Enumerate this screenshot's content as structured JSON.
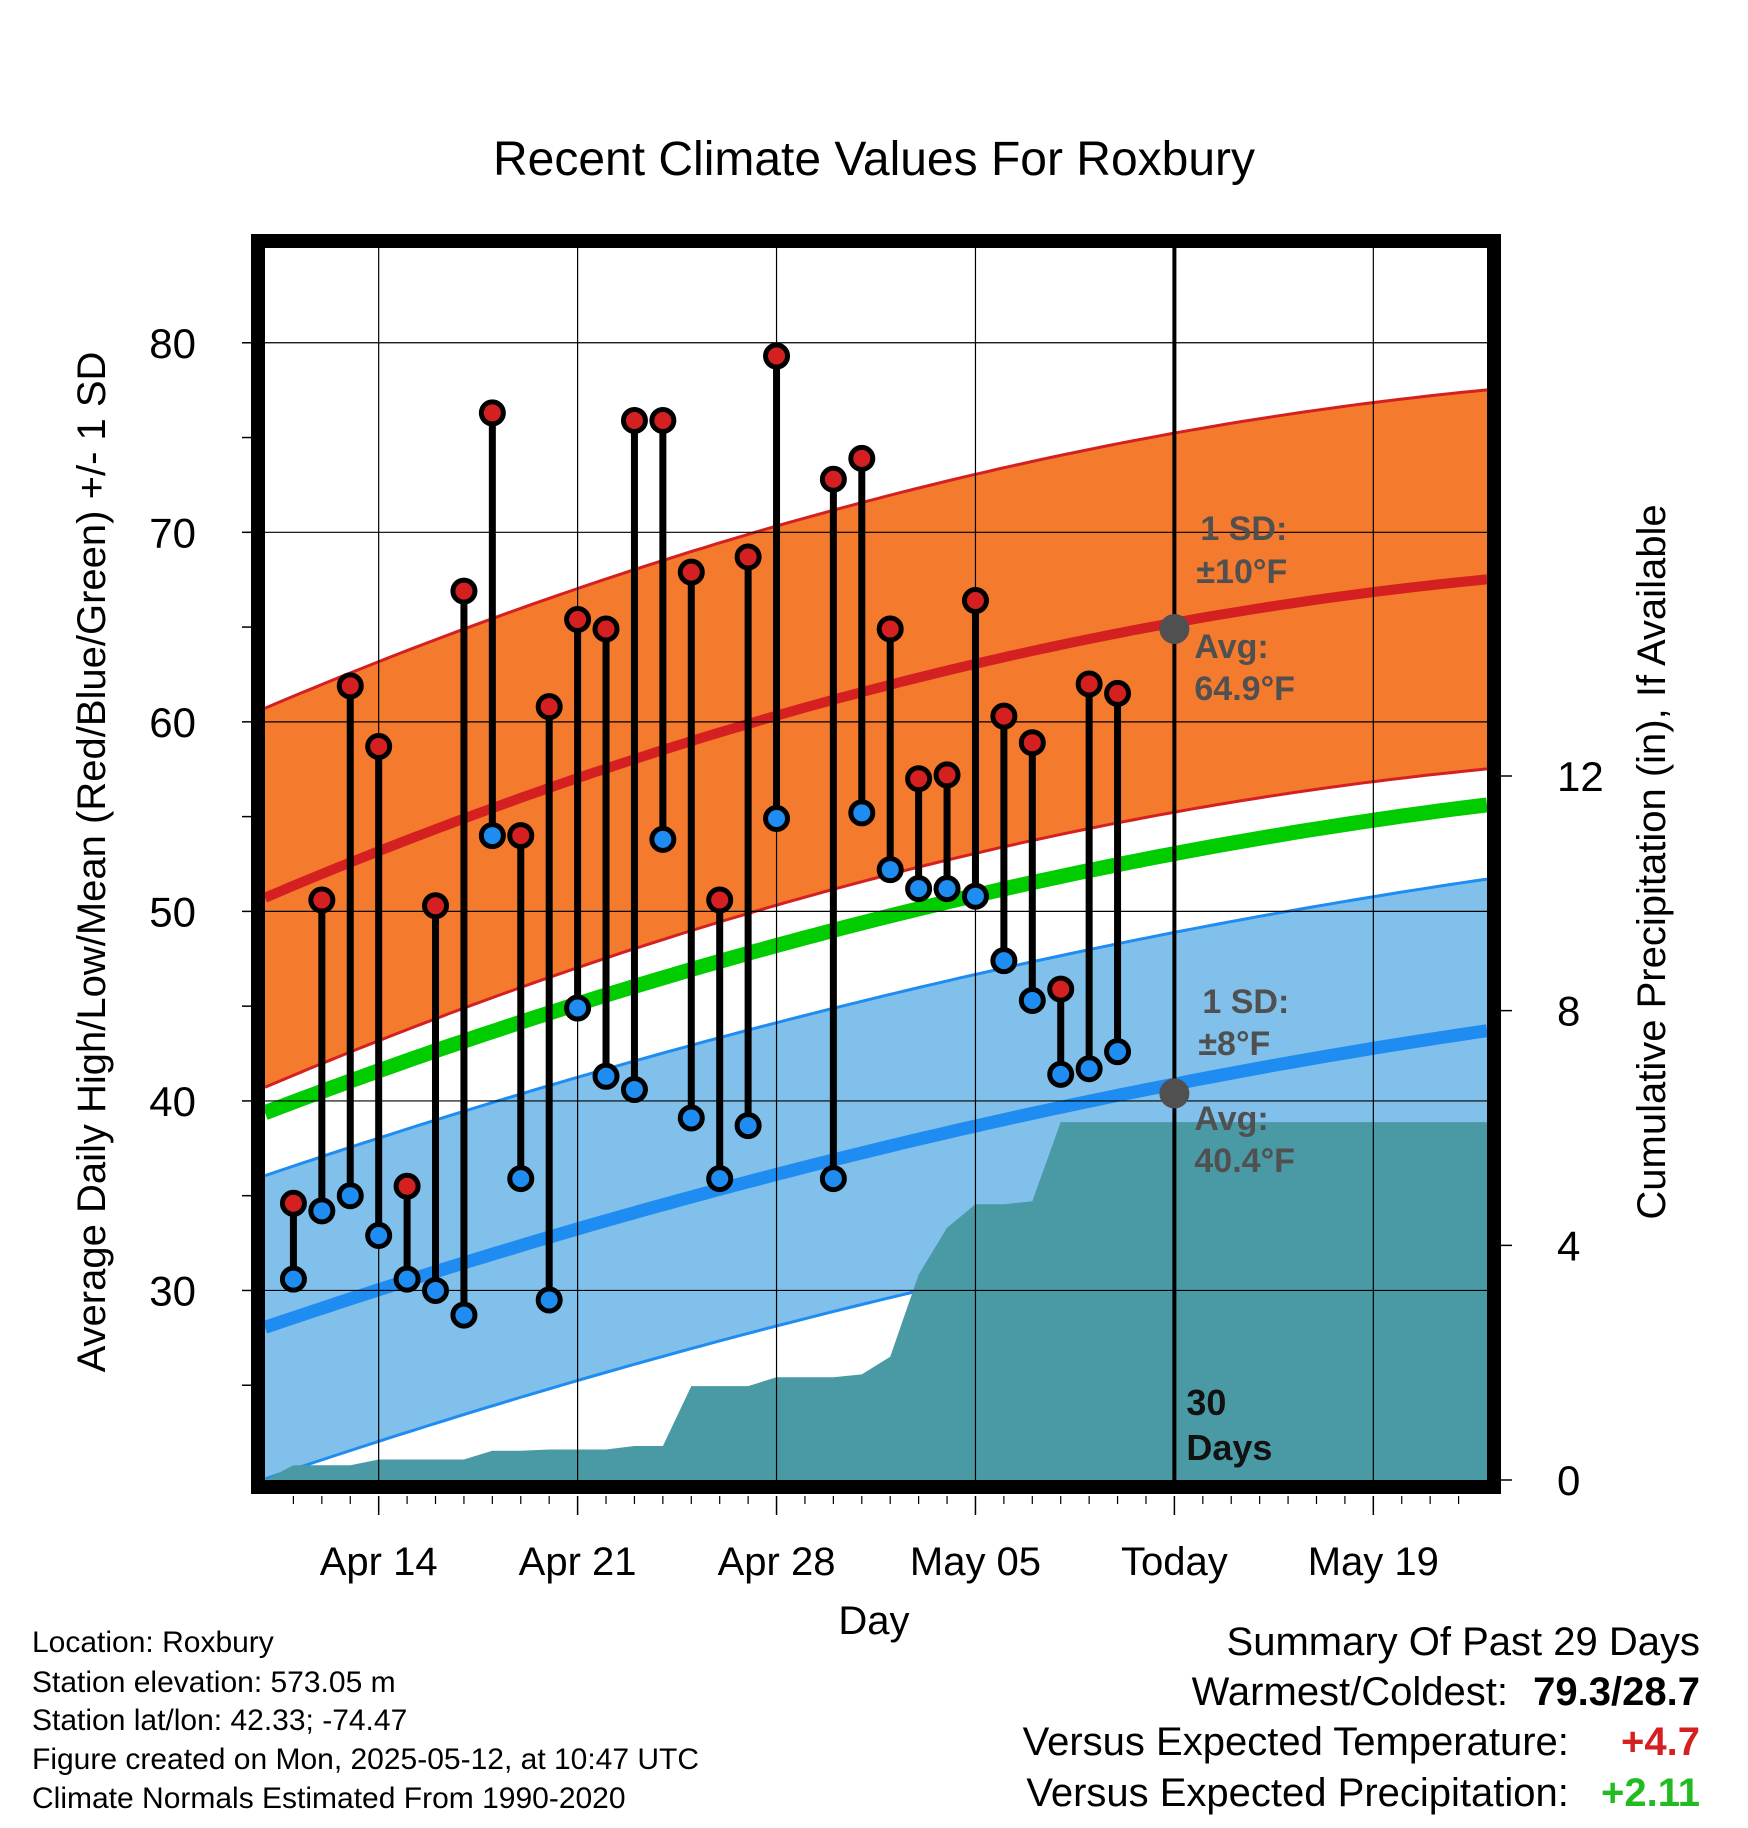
{
  "chart_data": {
    "type": "line",
    "title": "Recent Climate Values For Roxbury",
    "xlabel": "Day",
    "ylabel": "Average Daily High/Low/Mean (Red/Blue/Green) +/- 1 SD",
    "y2label": "Cumulative Precipitation (in), If Available",
    "ylim": [
      20,
      85
    ],
    "y2lim": [
      0,
      21
    ],
    "y_ticks": [
      "30",
      "40",
      "50",
      "60",
      "70",
      "80"
    ],
    "y2_ticks": [
      "0",
      "4",
      "8",
      "12"
    ],
    "x_range": [
      "2025-04-10",
      "2025-05-23"
    ],
    "x_ticks": [
      {
        "date": "2025-04-14",
        "label": "Apr 14"
      },
      {
        "date": "2025-04-21",
        "label": "Apr 21"
      },
      {
        "date": "2025-04-28",
        "label": "Apr 28"
      },
      {
        "date": "2025-05-05",
        "label": "May 05"
      },
      {
        "date": "2025-05-12",
        "label": "Today"
      },
      {
        "date": "2025-05-19",
        "label": "May 19"
      }
    ],
    "grid": true,
    "today": "2025-05-12",
    "days_label": [
      "30",
      "Days"
    ],
    "normals": {
      "dates": [
        "2025-04-11",
        "2025-04-18",
        "2025-04-25",
        "2025-05-02",
        "2025-05-09",
        "2025-05-16",
        "2025-05-22"
      ],
      "high_avg": [
        51.3,
        55.5,
        59.0,
        62.0,
        64.4,
        66.0,
        67.5
      ],
      "low_avg": [
        28.5,
        32.0,
        35.0,
        37.5,
        40.0,
        42.0,
        43.5
      ],
      "mean_avg": [
        39.9,
        43.7,
        47.0,
        49.7,
        52.2,
        54.0,
        55.5
      ],
      "high_sd": 10,
      "low_sd": 8
    },
    "high_annotation": {
      "sd_label": "1 SD:",
      "sd_value": "±10°F",
      "avg_label": "Avg:",
      "avg_value": "64.9°F",
      "value": 64.9
    },
    "low_annotation": {
      "sd_label": "1 SD:",
      "sd_value": "±8°F",
      "avg_label": "Avg:",
      "avg_value": "40.4°F",
      "value": 40.4
    },
    "series": [
      {
        "name": "High",
        "color": "#d42020",
        "values": [
          34.6,
          50.6,
          61.9,
          58.7,
          35.5,
          50.3,
          66.9,
          76.3,
          54.0,
          60.8,
          65.4,
          64.9,
          75.9,
          75.9,
          67.9,
          50.6,
          68.7,
          79.3,
          72.8,
          73.9,
          64.9,
          57.0,
          57.2,
          66.4,
          60.3,
          58.9,
          45.9,
          62.0,
          61.5
        ]
      },
      {
        "name": "Low",
        "color": "#1e8cf0",
        "values": [
          30.6,
          34.2,
          35.0,
          32.9,
          30.6,
          30.0,
          28.7,
          54.0,
          35.9,
          29.5,
          44.9,
          41.3,
          40.6,
          53.8,
          39.1,
          35.9,
          38.7,
          54.9,
          35.9,
          55.2,
          52.2,
          51.2,
          51.2,
          50.8,
          47.4,
          45.3,
          41.4,
          41.7,
          42.6
        ]
      }
    ],
    "observation_dates": [
      "2025-04-11",
      "2025-04-12",
      "2025-04-13",
      "2025-04-14",
      "2025-04-15",
      "2025-04-16",
      "2025-04-17",
      "2025-04-18",
      "2025-04-19",
      "2025-04-20",
      "2025-04-21",
      "2025-04-22",
      "2025-04-23",
      "2025-04-24",
      "2025-04-25",
      "2025-04-26",
      "2025-04-27",
      "2025-04-28",
      "2025-04-30",
      "2025-05-01",
      "2025-05-02",
      "2025-05-03",
      "2025-05-04",
      "2025-05-05",
      "2025-05-06",
      "2025-05-07",
      "2025-05-08",
      "2025-05-09",
      "2025-05-10"
    ],
    "precipitation": {
      "dates": [
        "2025-04-10",
        "2025-04-11",
        "2025-04-13",
        "2025-04-14",
        "2025-04-15",
        "2025-04-16",
        "2025-04-17",
        "2025-04-18",
        "2025-04-19",
        "2025-04-20",
        "2025-04-21",
        "2025-04-22",
        "2025-04-23",
        "2025-04-24",
        "2025-04-25",
        "2025-04-26",
        "2025-04-27",
        "2025-04-28",
        "2025-04-29",
        "2025-04-30",
        "2025-05-01",
        "2025-05-02",
        "2025-05-03",
        "2025-05-04",
        "2025-05-05",
        "2025-05-06",
        "2025-05-07",
        "2025-05-08",
        "2025-05-09",
        "2025-05-10",
        "2025-05-11",
        "2025-05-12",
        "2025-05-23"
      ],
      "values": [
        0.0,
        0.25,
        0.25,
        0.35,
        0.35,
        0.35,
        0.35,
        0.5,
        0.5,
        0.52,
        0.52,
        0.52,
        0.58,
        0.58,
        1.6,
        1.6,
        1.6,
        1.75,
        1.75,
        1.75,
        1.8,
        2.1,
        3.5,
        4.3,
        4.7,
        4.7,
        4.75,
        6.1,
        6.1,
        6.1,
        6.1,
        6.1,
        6.1
      ]
    }
  },
  "info": {
    "location": "Location: Roxbury",
    "elevation": "Station elevation: 573.05 m",
    "latlon": "Station lat/lon: 42.33; -74.47",
    "created": "Figure created on Mon, 2025-05-12, at 10:47 UTC",
    "normals": "Climate Normals Estimated From 1990-2020"
  },
  "summary": {
    "title": "Summary Of Past 29 Days",
    "warmest_label": "Warmest/Coldest:",
    "warmest_value": "79.3",
    "coldest_value": "28.7",
    "temp_label": "Versus Expected Temperature:",
    "temp_value": "+4.7",
    "temp_color": "#d42020",
    "precip_label": "Versus Expected Precipitation:",
    "precip_value": "+2.11",
    "precip_color": "#22bb22"
  },
  "colors": {
    "high_band": "#f47a2e",
    "high_line": "#d42020",
    "low_band": "#80c0ea",
    "low_line": "#1e8cf0",
    "mean_line": "#00cc00",
    "precip_fill": "#4a9aa5",
    "annotation": "#505050"
  }
}
